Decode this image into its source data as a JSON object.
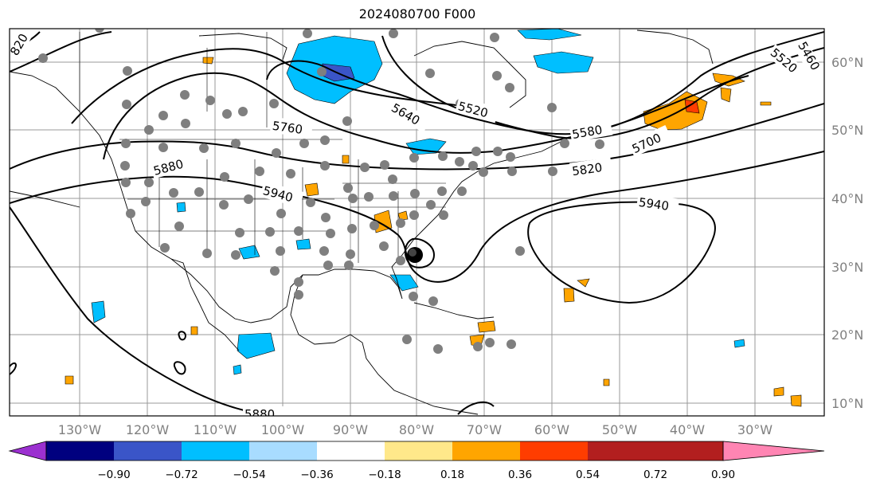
{
  "title": "2024080700 F000",
  "lat_labels": [
    "60°N",
    "50°N",
    "40°N",
    "30°N",
    "20°N",
    "10°N"
  ],
  "lon_labels": [
    "130°W",
    "120°W",
    "110°W",
    "100°W",
    "90°W",
    "80°W",
    "70°W",
    "60°W",
    "50°W",
    "40°W",
    "30°W"
  ],
  "contour_labels": [
    "5460",
    "5520",
    "5520",
    "5580",
    "5640",
    "5700",
    "5760",
    "5820",
    "5880",
    "5880",
    "5940",
    "5940",
    "820"
  ],
  "colorbar": {
    "ticks": [
      "−0.90",
      "−0.72",
      "−0.54",
      "−0.36",
      "−0.18",
      "0.18",
      "0.36",
      "0.54",
      "0.72",
      "0.90"
    ],
    "colors": [
      "#9b30d0",
      "#00007f",
      "#3a55c8",
      "#00bfff",
      "#a8dcff",
      "#ffffff",
      "#ffe88a",
      "#ffa500",
      "#ff3d00",
      "#b21f1f",
      "#ff85b3"
    ]
  }
}
